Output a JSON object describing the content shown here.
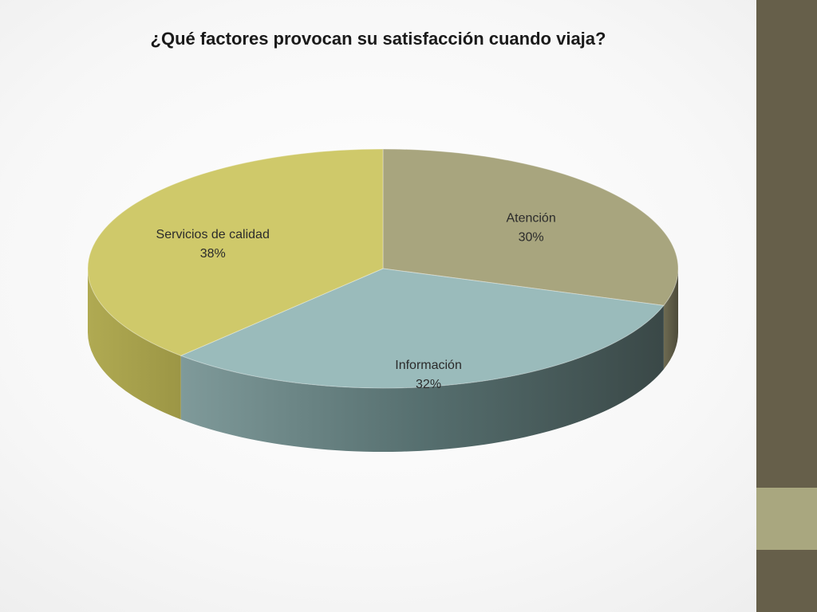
{
  "chart_data": {
    "type": "pie",
    "title": "¿Qué factores provocan su satisfacción cuando viaja?",
    "slices": [
      {
        "label": "Atención",
        "value": 30,
        "value_label": "30%",
        "color": "#a8a57e"
      },
      {
        "label": "Información",
        "value": 32,
        "value_label": "32%",
        "color": "#9abbbb"
      },
      {
        "label": "Servicios de calidad",
        "value": 38,
        "value_label": "38%",
        "color": "#cfc96a"
      }
    ]
  }
}
